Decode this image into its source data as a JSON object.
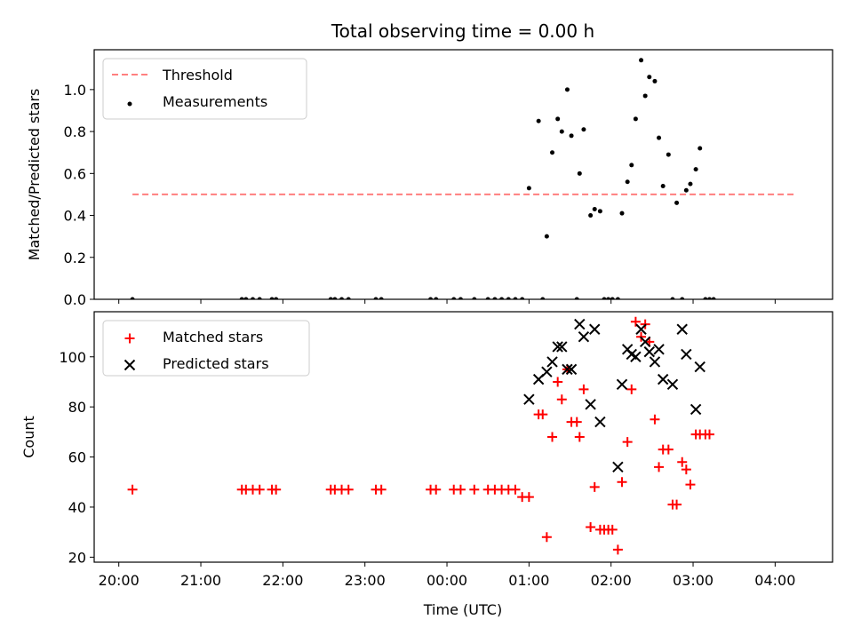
{
  "figure": {
    "title": "Total observing time = 0.00 h",
    "xlabel": "Time (UTC)"
  },
  "chart_data": [
    {
      "type": "scatter",
      "ylabel": "Matched/Predicted stars",
      "ylim": [
        0,
        1.19
      ],
      "yticks": [
        "0.0",
        "0.2",
        "0.4",
        "0.6",
        "0.8",
        "1.0"
      ],
      "ytick_values": [
        0,
        0.2,
        0.4,
        0.6,
        0.8,
        1.0
      ],
      "threshold": {
        "name": "Threshold",
        "value": 0.5,
        "x_range": [
          "20:10",
          "04:15"
        ],
        "color": "#ff7f7f"
      },
      "series": [
        {
          "name": "Measurements",
          "color": "#000000",
          "points": [
            [
              "20:10",
              0
            ],
            [
              "21:30",
              0
            ],
            [
              "21:33",
              0
            ],
            [
              "21:38",
              0
            ],
            [
              "21:43",
              0
            ],
            [
              "21:52",
              0
            ],
            [
              "21:55",
              0
            ],
            [
              "22:35",
              0
            ],
            [
              "22:38",
              0
            ],
            [
              "22:43",
              0
            ],
            [
              "22:48",
              0
            ],
            [
              "23:08",
              0
            ],
            [
              "23:12",
              0
            ],
            [
              "23:48",
              0
            ],
            [
              "23:52",
              0
            ],
            [
              "00:05",
              0
            ],
            [
              "00:10",
              0
            ],
            [
              "00:20",
              0
            ],
            [
              "00:30",
              0
            ],
            [
              "00:35",
              0
            ],
            [
              "00:40",
              0
            ],
            [
              "00:45",
              0
            ],
            [
              "00:50",
              0
            ],
            [
              "00:55",
              0
            ],
            [
              "01:00",
              0.53
            ],
            [
              "01:07",
              0.85
            ],
            [
              "01:10",
              0
            ],
            [
              "01:13",
              0.3
            ],
            [
              "01:17",
              0.7
            ],
            [
              "01:21",
              0.86
            ],
            [
              "01:24",
              0.8
            ],
            [
              "01:28",
              1.0
            ],
            [
              "01:31",
              0.78
            ],
            [
              "01:35",
              0
            ],
            [
              "01:37",
              0.6
            ],
            [
              "01:40",
              0.81
            ],
            [
              "01:45",
              0.4
            ],
            [
              "01:48",
              0.43
            ],
            [
              "01:52",
              0.42
            ],
            [
              "01:55",
              0
            ],
            [
              "01:58",
              0
            ],
            [
              "02:01",
              0
            ],
            [
              "02:05",
              0
            ],
            [
              "02:08",
              0.41
            ],
            [
              "02:12",
              0.56
            ],
            [
              "02:15",
              0.64
            ],
            [
              "02:18",
              0.86
            ],
            [
              "02:22",
              1.14
            ],
            [
              "02:25",
              0.97
            ],
            [
              "02:28",
              1.06
            ],
            [
              "02:32",
              1.04
            ],
            [
              "02:35",
              0.77
            ],
            [
              "02:38",
              0.54
            ],
            [
              "02:42",
              0.69
            ],
            [
              "02:45",
              0
            ],
            [
              "02:48",
              0.46
            ],
            [
              "02:52",
              0
            ],
            [
              "02:55",
              0.52
            ],
            [
              "02:58",
              0.55
            ],
            [
              "03:02",
              0.62
            ],
            [
              "03:05",
              0.72
            ],
            [
              "03:09",
              0
            ],
            [
              "03:12",
              0
            ],
            [
              "03:15",
              0
            ]
          ]
        }
      ]
    },
    {
      "type": "scatter",
      "ylabel": "Count",
      "ylim": [
        18,
        118
      ],
      "yticks": [
        "20",
        "40",
        "60",
        "80",
        "100"
      ],
      "ytick_values": [
        20,
        40,
        60,
        80,
        100
      ],
      "series": [
        {
          "name": "Matched stars",
          "marker": "+",
          "color": "#ff0000",
          "points": [
            [
              "20:10",
              47
            ],
            [
              "21:30",
              47
            ],
            [
              "21:33",
              47
            ],
            [
              "21:38",
              47
            ],
            [
              "21:43",
              47
            ],
            [
              "21:52",
              47
            ],
            [
              "21:55",
              47
            ],
            [
              "22:35",
              47
            ],
            [
              "22:38",
              47
            ],
            [
              "22:43",
              47
            ],
            [
              "22:48",
              47
            ],
            [
              "23:08",
              47
            ],
            [
              "23:12",
              47
            ],
            [
              "23:48",
              47
            ],
            [
              "23:52",
              47
            ],
            [
              "00:05",
              47
            ],
            [
              "00:10",
              47
            ],
            [
              "00:20",
              47
            ],
            [
              "00:30",
              47
            ],
            [
              "00:35",
              47
            ],
            [
              "00:40",
              47
            ],
            [
              "00:45",
              47
            ],
            [
              "00:50",
              47
            ],
            [
              "00:55",
              44
            ],
            [
              "01:00",
              44
            ],
            [
              "01:07",
              77
            ],
            [
              "01:10",
              77
            ],
            [
              "01:13",
              28
            ],
            [
              "01:17",
              68
            ],
            [
              "01:21",
              90
            ],
            [
              "01:24",
              83
            ],
            [
              "01:28",
              95
            ],
            [
              "01:31",
              74
            ],
            [
              "01:35",
              74
            ],
            [
              "01:37",
              68
            ],
            [
              "01:40",
              87
            ],
            [
              "01:45",
              32
            ],
            [
              "01:48",
              48
            ],
            [
              "01:52",
              31
            ],
            [
              "01:55",
              31
            ],
            [
              "01:58",
              31
            ],
            [
              "02:01",
              31
            ],
            [
              "02:05",
              23
            ],
            [
              "02:08",
              50
            ],
            [
              "02:12",
              66
            ],
            [
              "02:15",
              87
            ],
            [
              "02:18",
              114
            ],
            [
              "02:22",
              108
            ],
            [
              "02:25",
              113
            ],
            [
              "02:28",
              106
            ],
            [
              "02:32",
              75
            ],
            [
              "02:35",
              56
            ],
            [
              "02:38",
              63
            ],
            [
              "02:42",
              63
            ],
            [
              "02:45",
              41
            ],
            [
              "02:48",
              41
            ],
            [
              "02:52",
              58
            ],
            [
              "02:55",
              55
            ],
            [
              "02:58",
              49
            ],
            [
              "03:02",
              69
            ],
            [
              "03:05",
              69
            ],
            [
              "03:09",
              69
            ],
            [
              "03:12",
              69
            ]
          ]
        },
        {
          "name": "Predicted stars",
          "marker": "x",
          "color": "#000000",
          "points": [
            [
              "01:00",
              83
            ],
            [
              "01:07",
              91
            ],
            [
              "01:13",
              94
            ],
            [
              "01:17",
              98
            ],
            [
              "01:21",
              104
            ],
            [
              "01:24",
              104
            ],
            [
              "01:28",
              95
            ],
            [
              "01:31",
              95
            ],
            [
              "01:37",
              113
            ],
            [
              "01:40",
              108
            ],
            [
              "01:45",
              81
            ],
            [
              "01:48",
              111
            ],
            [
              "01:52",
              74
            ],
            [
              "02:05",
              56
            ],
            [
              "02:08",
              89
            ],
            [
              "02:12",
              103
            ],
            [
              "02:15",
              101
            ],
            [
              "02:18",
              100
            ],
            [
              "02:22",
              111
            ],
            [
              "02:25",
              106
            ],
            [
              "02:28",
              102
            ],
            [
              "02:32",
              98
            ],
            [
              "02:35",
              103
            ],
            [
              "02:38",
              91
            ],
            [
              "02:45",
              89
            ],
            [
              "02:52",
              111
            ],
            [
              "02:55",
              101
            ],
            [
              "03:02",
              79
            ],
            [
              "03:05",
              96
            ]
          ]
        }
      ]
    }
  ],
  "xaxis": {
    "ticks": [
      "20:00",
      "21:00",
      "22:00",
      "23:00",
      "00:00",
      "01:00",
      "02:00",
      "03:00",
      "04:00"
    ],
    "tick_times": [
      "20:00",
      "21:00",
      "22:00",
      "23:00",
      "00:00",
      "01:00",
      "02:00",
      "03:00",
      "04:00"
    ]
  }
}
